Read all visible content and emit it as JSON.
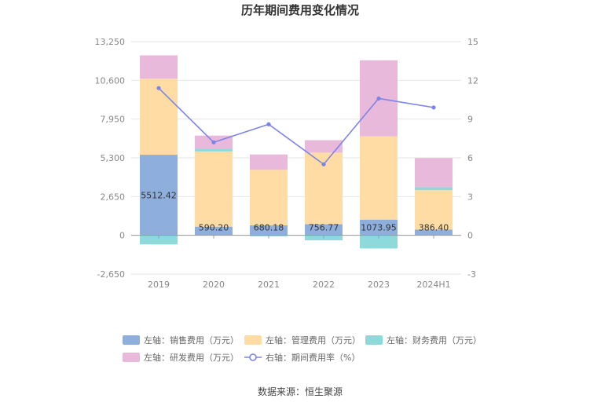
{
  "chart_data": {
    "type": "bar",
    "title": "历年期间费用变化情况",
    "categories": [
      "2019",
      "2020",
      "2021",
      "2022",
      "2023",
      "2024H1"
    ],
    "left_axis": {
      "ticks": [
        "-2,650",
        "0",
        "2,650",
        "5,300",
        "7,950",
        "10,600",
        "13,250"
      ],
      "ylim": [
        -2650,
        13250
      ]
    },
    "right_axis": {
      "ticks": [
        "-3",
        "0",
        "3",
        "6",
        "9",
        "12",
        "15"
      ],
      "ylim": [
        -3,
        15
      ]
    },
    "series": [
      {
        "name": "左轴：销售费用（万元）",
        "type": "stacked-bar",
        "color": "#8eaedb",
        "values": [
          5512.42,
          590.2,
          680.18,
          756.77,
          1073.95,
          386.4
        ]
      },
      {
        "name": "左轴：管理费用（万元）",
        "type": "stacked-bar",
        "color": "#fedca3",
        "values": [
          5200,
          5150,
          3800,
          4900,
          5700,
          2700
        ]
      },
      {
        "name": "左轴：财务费用（万元）",
        "type": "stacked-bar",
        "color": "#8ed9da",
        "values": [
          -620,
          180,
          -60,
          -340,
          -900,
          200
        ]
      },
      {
        "name": "左轴：研发费用（万元）",
        "type": "stacked-bar",
        "color": "#e8b9db",
        "values": [
          1600,
          900,
          1050,
          850,
          5200,
          2000
        ]
      },
      {
        "name": "右轴：期间费用率（%）",
        "type": "line",
        "axis": "right",
        "color": "#7b84e8",
        "values": [
          11.4,
          7.2,
          8.6,
          5.5,
          10.6,
          9.9
        ]
      }
    ],
    "data_labels": [
      "5512.42",
      "590.20",
      "680.18",
      "756.77",
      "1073.95",
      "386.40"
    ],
    "legend_position": "bottom",
    "grid": true
  },
  "source": "数据来源：恒生聚源"
}
